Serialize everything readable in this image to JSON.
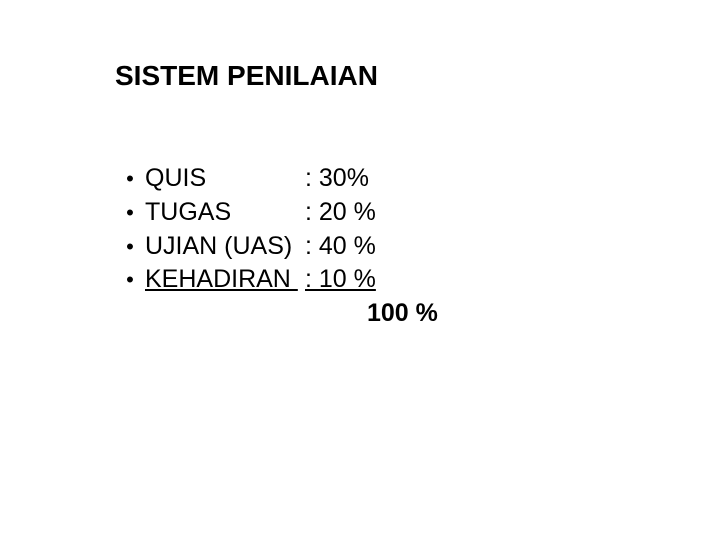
{
  "title": "SISTEM PENILAIAN",
  "items": [
    {
      "label": "QUIS",
      "value": ": 30%",
      "underlined": false
    },
    {
      "label": "TUGAS",
      "value": ": 20 %",
      "underlined": false
    },
    {
      "label": "UJIAN (UAS)",
      "value": ": 40 %",
      "underlined": false
    },
    {
      "label": "KEHADIRAN ",
      "value": ": 10 %",
      "underlined": true
    }
  ],
  "total": "100 %",
  "style": {
    "background_color": "#ffffff",
    "text_color": "#000000",
    "title_fontsize": 28,
    "title_fontweight": "bold",
    "item_fontsize": 25,
    "total_fontweight": "bold",
    "bullet_char": "•",
    "font_family": "Arial"
  }
}
